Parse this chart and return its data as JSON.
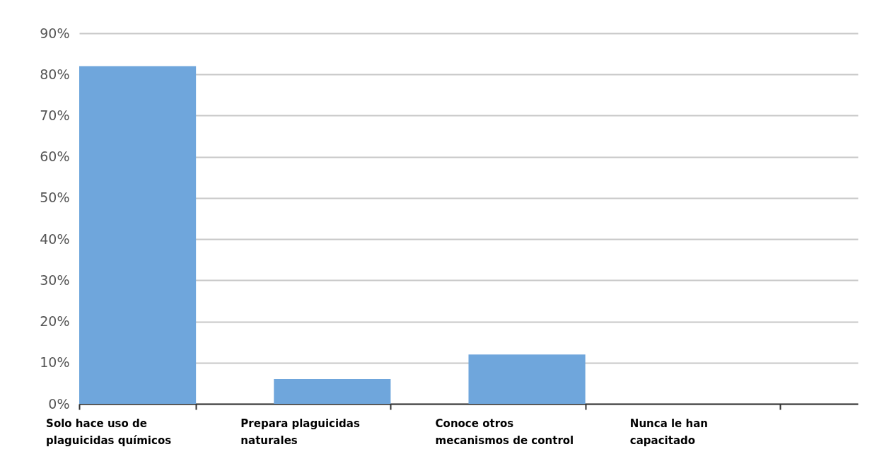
{
  "chart_data": {
    "type": "bar",
    "categories": [
      "Solo hace uso de plaguicidas químicos",
      "Prepara plaguicidas naturales",
      "Conoce otros mecanismos de control",
      "Nunca le han capacitado"
    ],
    "values": [
      82,
      6,
      12,
      0
    ],
    "color": "#6fa6dc",
    "ylim": [
      0,
      90
    ],
    "yticks": [
      {
        "value": 0,
        "label": "0%"
      },
      {
        "value": 10,
        "label": "10%"
      },
      {
        "value": 20,
        "label": "20%"
      },
      {
        "value": 30,
        "label": "30%"
      },
      {
        "value": 40,
        "label": "40%"
      },
      {
        "value": 50,
        "label": "50%"
      },
      {
        "value": 60,
        "label": "60%"
      },
      {
        "value": 70,
        "label": "70%"
      },
      {
        "value": 80,
        "label": "80%"
      },
      {
        "value": 90,
        "label": "90%"
      }
    ],
    "grid": "y"
  }
}
